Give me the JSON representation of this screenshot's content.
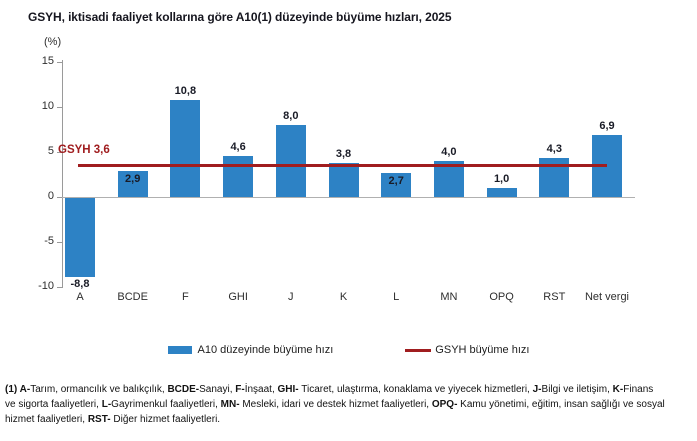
{
  "title": "GSYH, iktisadi faaliyet kollarına göre A10(1) düzeyinde büyüme hızları, 2025",
  "chart_data": {
    "type": "bar",
    "title": "GSYH, iktisadi faaliyet kollarına göre A10(1) düzeyinde büyüme hızları, 2025",
    "xlabel": "",
    "ylabel": "(%)",
    "categories": [
      "A",
      "BCDE",
      "F",
      "GHI",
      "J",
      "K",
      "L",
      "MN",
      "OPQ",
      "RST",
      "Net vergi"
    ],
    "values": [
      -8.8,
      2.9,
      10.8,
      4.6,
      8.0,
      3.8,
      2.7,
      4.0,
      1.0,
      4.3,
      6.9
    ],
    "value_labels": [
      "-8,8",
      "2,9",
      "10,8",
      "4,6",
      "8,0",
      "3,8",
      "2,7",
      "4,0",
      "1,0",
      "4,3",
      "6,9"
    ],
    "label_inside": [
      false,
      true,
      false,
      false,
      false,
      false,
      true,
      false,
      false,
      false,
      false
    ],
    "ylim": [
      -10,
      15
    ],
    "yticks": [
      15,
      10,
      5,
      0,
      -5,
      -10
    ],
    "ytick_labels": [
      "15",
      "10",
      "5",
      "0",
      "-5",
      "-10"
    ],
    "grid": false,
    "legend_position": "bottom",
    "reference_line": {
      "value": 3.6,
      "label": "GSYH 3,6"
    },
    "bar_color": "#2d82c5",
    "line_color": "#a01d1f"
  },
  "legend": {
    "bar_label": "A10 düzeyinde büyüme hızı",
    "line_label": "GSYH büyüme hızı"
  },
  "footnote": {
    "segments": [
      {
        "text": "(1) A-",
        "bold": true
      },
      {
        "text": "Tarım, ormancılık ve balıkçılık, ",
        "bold": false
      },
      {
        "text": "BCDE-",
        "bold": true
      },
      {
        "text": "Sanayi, ",
        "bold": false
      },
      {
        "text": "F-",
        "bold": true
      },
      {
        "text": "İnşaat, ",
        "bold": false
      },
      {
        "text": "GHI-",
        "bold": true
      },
      {
        "text": " Ticaret, ulaştırma, konaklama ve yiyecek hizmetleri, ",
        "bold": false
      },
      {
        "text": "J-",
        "bold": true
      },
      {
        "text": "Bilgi ve iletişim, ",
        "bold": false
      },
      {
        "text": "K-",
        "bold": true
      },
      {
        "text": "Finans ve sigorta faaliyetleri, ",
        "bold": false
      },
      {
        "text": "L-",
        "bold": true
      },
      {
        "text": "Gayrimenkul faaliyetleri, ",
        "bold": false
      },
      {
        "text": "MN-",
        "bold": true
      },
      {
        "text": " Mesleki, idari ve destek hizmet faaliyetleri, ",
        "bold": false
      },
      {
        "text": "OPQ-",
        "bold": true
      },
      {
        "text": " Kamu yönetimi, eğitim, insan sağlığı ve sosyal hizmet faaliyetleri, ",
        "bold": false
      },
      {
        "text": "RST-",
        "bold": true
      },
      {
        "text": " Diğer hizmet faaliyetleri.",
        "bold": false
      }
    ]
  },
  "colors": {
    "bar": "#2d82c5",
    "reference_line": "#a01d1f",
    "axis": "#9a9a9a",
    "zero_line": "#b0b0b0",
    "title_text": "#16161f"
  }
}
